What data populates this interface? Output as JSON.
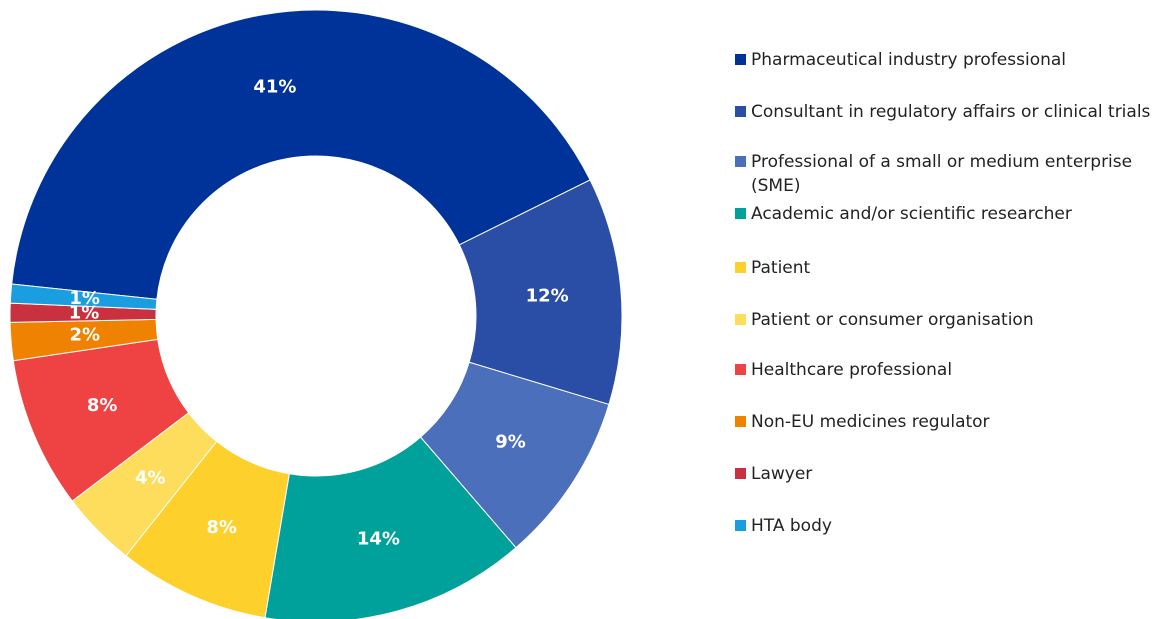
{
  "chart_data": {
    "type": "donut",
    "categories": [
      "Pharmaceutical industry professional",
      "Consultant in regulatory affairs or clinical trials",
      "Professional of a small or medium enterprise (SME)",
      "Academic and/or scientific researcher",
      "Patient",
      "Patient or consumer organisation",
      "Healthcare professional",
      "Non-EU medicines regulator",
      "Lawyer",
      "HTA body"
    ],
    "values": [
      41,
      12,
      9,
      14,
      8,
      4,
      8,
      2,
      1,
      1
    ],
    "value_labels": [
      "41%",
      "12%",
      "9%",
      "14%",
      "8%",
      "4%",
      "8%",
      "2%",
      "1%",
      "1%"
    ],
    "colors": [
      "#003399",
      "#2a4ea6",
      "#4b6fba",
      "#00a19a",
      "#fdd02b",
      "#fedc5c",
      "#ef4343",
      "#ef8200",
      "#c8313d",
      "#1a9ee0"
    ],
    "legend": "right"
  }
}
